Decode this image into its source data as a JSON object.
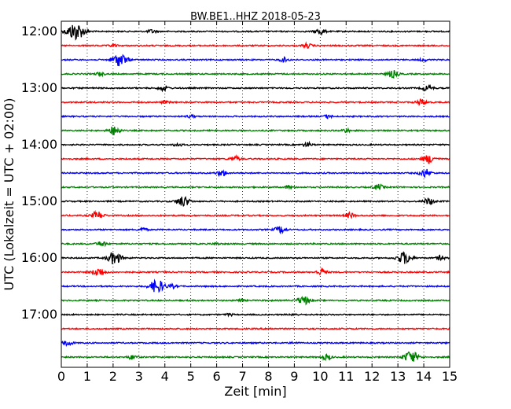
{
  "chart_data": {
    "type": "line",
    "title": "BW.BE1..HHZ 2018-05-23",
    "xlabel": "Zeit  [min]",
    "ylabel": "UTC (Lokalzeit = UTC + 02:00)",
    "xlim": [
      0,
      15
    ],
    "x_ticks": [
      "0",
      "1",
      "2",
      "3",
      "4",
      "5",
      "6",
      "7",
      "8",
      "9",
      "10",
      "11",
      "12",
      "13",
      "14",
      "15"
    ],
    "y_ticks": [
      "12:00",
      "13:00",
      "14:00",
      "15:00",
      "16:00",
      "17:00"
    ],
    "grid": "vertical-dotted",
    "trace_colors": [
      "#000000",
      "#ff0000",
      "#0000ff",
      "#008000"
    ],
    "series": [
      {
        "start": "12:00",
        "events": [
          [
            0.55,
            1.0
          ],
          [
            10.0,
            0.35
          ],
          [
            3.5,
            0.2
          ]
        ]
      },
      {
        "start": "12:15",
        "events": [
          [
            9.5,
            0.25
          ],
          [
            2.0,
            0.15
          ]
        ]
      },
      {
        "start": "12:30",
        "events": [
          [
            2.25,
            0.75
          ],
          [
            8.6,
            0.25
          ],
          [
            14.0,
            0.15
          ]
        ]
      },
      {
        "start": "12:45",
        "events": [
          [
            1.5,
            0.2
          ],
          [
            12.8,
            0.4
          ]
        ]
      },
      {
        "start": "13:00",
        "events": [
          [
            3.95,
            0.3
          ],
          [
            14.15,
            0.35
          ]
        ]
      },
      {
        "start": "13:15",
        "events": [
          [
            13.9,
            0.35
          ],
          [
            4.0,
            0.15
          ]
        ]
      },
      {
        "start": "13:30",
        "events": [
          [
            10.3,
            0.2
          ],
          [
            5.0,
            0.15
          ]
        ]
      },
      {
        "start": "13:45",
        "events": [
          [
            2.05,
            0.5
          ],
          [
            11.0,
            0.2
          ]
        ]
      },
      {
        "start": "14:00",
        "events": [
          [
            4.5,
            0.2
          ],
          [
            9.5,
            0.25
          ]
        ]
      },
      {
        "start": "14:15",
        "events": [
          [
            6.7,
            0.3
          ],
          [
            14.2,
            0.5
          ]
        ]
      },
      {
        "start": "14:30",
        "events": [
          [
            6.2,
            0.35
          ],
          [
            14.05,
            0.45
          ]
        ]
      },
      {
        "start": "14:45",
        "events": [
          [
            8.8,
            0.2
          ],
          [
            12.25,
            0.3
          ]
        ]
      },
      {
        "start": "15:00",
        "events": [
          [
            4.7,
            0.6
          ],
          [
            14.2,
            0.4
          ]
        ]
      },
      {
        "start": "15:15",
        "events": [
          [
            1.4,
            0.45
          ],
          [
            11.15,
            0.3
          ]
        ]
      },
      {
        "start": "15:30",
        "events": [
          [
            8.45,
            0.4
          ],
          [
            3.15,
            0.2
          ]
        ]
      },
      {
        "start": "15:45",
        "events": [
          [
            1.55,
            0.3
          ],
          [
            6.0,
            0.1
          ]
        ]
      },
      {
        "start": "16:00",
        "events": [
          [
            2.05,
            0.7
          ],
          [
            13.25,
            0.7
          ],
          [
            14.65,
            0.25
          ]
        ]
      },
      {
        "start": "16:15",
        "events": [
          [
            1.45,
            0.5
          ],
          [
            10.05,
            0.35
          ]
        ]
      },
      {
        "start": "16:30",
        "events": [
          [
            3.7,
            0.75
          ],
          [
            4.3,
            0.2
          ]
        ]
      },
      {
        "start": "16:45",
        "events": [
          [
            9.35,
            0.5
          ],
          [
            6.9,
            0.15
          ]
        ]
      },
      {
        "start": "17:00",
        "events": [
          [
            6.5,
            0.12
          ],
          [
            9.0,
            0.1
          ]
        ]
      },
      {
        "start": "17:15",
        "events": [
          [
            8.0,
            0.08
          ]
        ]
      },
      {
        "start": "17:30",
        "events": [
          [
            0.25,
            0.3
          ],
          [
            9.0,
            0.08
          ]
        ]
      },
      {
        "start": "17:45",
        "events": [
          [
            2.75,
            0.25
          ],
          [
            10.25,
            0.3
          ],
          [
            13.5,
            0.7
          ]
        ]
      }
    ]
  }
}
